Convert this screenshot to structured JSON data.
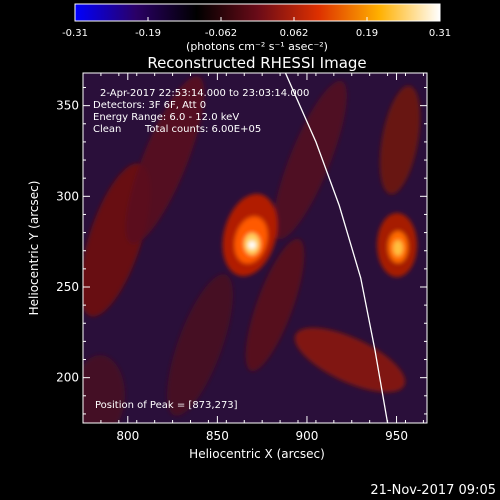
{
  "chart_data": {
    "type": "heatmap",
    "title": "Reconstructed RHESSI Image",
    "xlabel": "Heliocentric X (arcsec)",
    "ylabel": "Heliocentric Y (arcsec)",
    "xlim": [
      775,
      967
    ],
    "ylim": [
      175,
      368
    ],
    "x_ticks": [
      800,
      850,
      900,
      950
    ],
    "y_ticks": [
      200,
      250,
      300,
      350
    ],
    "colorbar": {
      "ticks": [
        "-0.31",
        "-0.19",
        "-0.062",
        "0.062",
        "0.19",
        "0.31"
      ],
      "range": [
        -0.31,
        0.31
      ],
      "unit_label": "(photons cm⁻² s⁻¹ asec⁻²)",
      "colormap": [
        "#0000ff",
        "#2a0066",
        "#000000",
        "#6a0b18",
        "#dd3000",
        "#ffb000",
        "#ffffff"
      ]
    },
    "annotations": {
      "time_range": "2-Apr-2017 22:53:14.000 to 23:03:14.000",
      "detectors": "Detectors: 3F 6F, Att 0",
      "energy": "Energy Range: 6.0 - 12.0 keV",
      "method": "Clean",
      "counts": "Total counts: 6.00E+05",
      "peak": "Position of Peak = [873,273]"
    },
    "sources": [
      {
        "x": 873,
        "y": 273,
        "peak": 0.31
      },
      {
        "x": 954,
        "y": 272,
        "peak": 0.22
      }
    ],
    "limb_curve": [
      [
        888,
        368
      ],
      [
        905,
        330
      ],
      [
        918,
        295
      ],
      [
        930,
        255
      ],
      [
        938,
        215
      ],
      [
        945,
        175
      ]
    ]
  },
  "footer": {
    "timestamp": "21-Nov-2017 09:05"
  }
}
